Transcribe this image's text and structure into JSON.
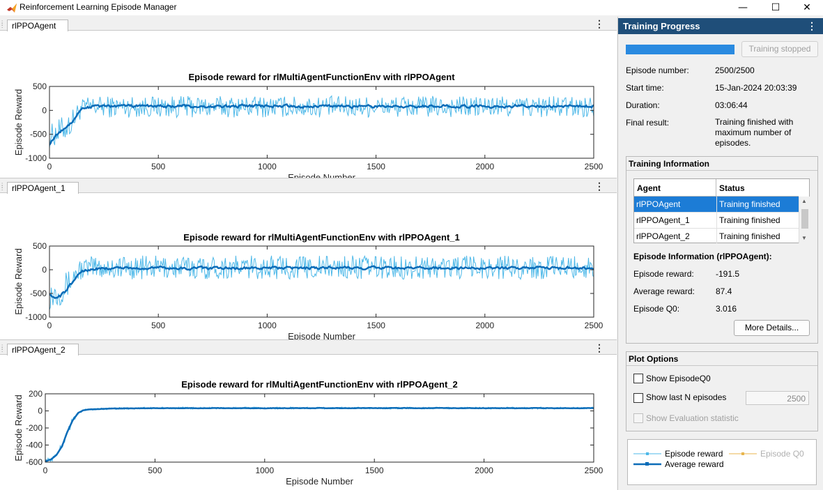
{
  "window": {
    "title": "Reinforcement Learning Episode Manager",
    "controls": {
      "minimize": "—",
      "maximize": "☐",
      "close": "✕"
    }
  },
  "plots": [
    {
      "tab_label": "rlPPOAgent",
      "chart_data": {
        "type": "line",
        "title": "Episode reward for rlMultiAgentFunctionEnv with rlPPOAgent",
        "xlabel": "Episode Number",
        "ylabel": "Episode Reward",
        "xlim": [
          0,
          2500
        ],
        "ylim": [
          -1000,
          500
        ],
        "xticks": [
          0,
          500,
          1000,
          1500,
          2000,
          2500
        ],
        "yticks": [
          500,
          0,
          -500,
          -1000
        ],
        "ytick_labels": [
          "500",
          "0",
          "-500",
          "-1000"
        ],
        "grid": false,
        "series": [
          {
            "name": "Episode reward",
            "color": "#4db8e8",
            "x": [
              0,
              50,
              100,
              125,
              150,
              200,
              250,
              500,
              1000,
              1500,
              2000,
              2500
            ],
            "y_high": [
              -300,
              -150,
              0,
              150,
              250,
              300,
              300,
              300,
              300,
              300,
              300,
              300
            ],
            "y_low": [
              -800,
              -700,
              -550,
              -300,
              -150,
              -150,
              -150,
              -150,
              -150,
              -150,
              -150,
              -150
            ]
          },
          {
            "name": "Average reward",
            "color": "#0b6cb8",
            "x": [
              0,
              25,
              50,
              75,
              100,
              125,
              150,
              200,
              300,
              500,
              750,
              1000,
              1250,
              1500,
              1750,
              2000,
              2250,
              2500
            ],
            "y": [
              -700,
              -550,
              -450,
              -350,
              -250,
              -100,
              50,
              80,
              90,
              85,
              80,
              90,
              85,
              80,
              90,
              85,
              90,
              87
            ]
          }
        ]
      }
    },
    {
      "tab_label": "rlPPOAgent_1",
      "chart_data": {
        "type": "line",
        "title": "Episode reward for rlMultiAgentFunctionEnv with rlPPOAgent_1",
        "xlabel": "Episode Number",
        "ylabel": "Episode Reward",
        "xlim": [
          0,
          2500
        ],
        "ylim": [
          -1000,
          500
        ],
        "xticks": [
          0,
          500,
          1000,
          1500,
          2000,
          2500
        ],
        "yticks": [
          500,
          0,
          -500,
          -1000
        ],
        "ytick_labels": [
          "500",
          "0",
          "-500",
          "-1000"
        ],
        "grid": false,
        "series": [
          {
            "name": "Episode reward",
            "color": "#4db8e8",
            "x": [
              0,
              50,
              100,
              125,
              150,
              200,
              250,
              500,
              1000,
              1500,
              2000,
              2500
            ],
            "y_high": [
              -200,
              -150,
              50,
              200,
              250,
              300,
              300,
              300,
              300,
              300,
              300,
              300
            ],
            "y_low": [
              -850,
              -750,
              -500,
              -300,
              -200,
              -200,
              -200,
              -200,
              -200,
              -200,
              -200,
              -200
            ]
          },
          {
            "name": "Average reward",
            "color": "#0b6cb8",
            "x": [
              0,
              25,
              50,
              75,
              100,
              125,
              150,
              200,
              300,
              500,
              750,
              1000,
              1250,
              1500,
              1750,
              2000,
              2250,
              2500
            ],
            "y": [
              -500,
              -600,
              -550,
              -450,
              -300,
              -150,
              -20,
              20,
              40,
              40,
              30,
              40,
              35,
              40,
              40,
              35,
              40,
              40
            ]
          }
        ]
      }
    },
    {
      "tab_label": "rlPPOAgent_2",
      "chart_data": {
        "type": "line",
        "title": "Episode reward for rlMultiAgentFunctionEnv with rlPPOAgent_2",
        "xlabel": "Episode Number",
        "ylabel": "Episode Reward",
        "xlim": [
          0,
          2500
        ],
        "ylim": [
          -600,
          200
        ],
        "xticks": [
          0,
          500,
          1000,
          1500,
          2000,
          2500
        ],
        "yticks": [
          200,
          0,
          -200,
          -400,
          -600
        ],
        "ytick_labels": [
          "200",
          "0",
          "-200",
          "-400",
          "-600"
        ],
        "grid": false,
        "series": [
          {
            "name": "Episode reward",
            "color": "#4db8e8",
            "x": [
              0,
              25,
              50,
              75,
              100,
              125,
              150,
              175,
              200,
              300,
              500,
              1000,
              1500,
              2000,
              2500
            ],
            "y_high": [
              -560,
              -540,
              -480,
              -380,
              -200,
              -70,
              -10,
              20,
              30,
              40,
              45,
              45,
              45,
              45,
              45
            ],
            "y_low": [
              -620,
              -600,
              -560,
              -460,
              -300,
              -150,
              -40,
              -5,
              5,
              15,
              20,
              20,
              20,
              20,
              20
            ]
          },
          {
            "name": "Average reward",
            "color": "#0b6cb8",
            "x": [
              0,
              25,
              50,
              75,
              100,
              125,
              150,
              175,
              200,
              300,
              500,
              1000,
              1500,
              2000,
              2500
            ],
            "y": [
              -590,
              -570,
              -520,
              -420,
              -250,
              -110,
              -25,
              8,
              18,
              28,
              32,
              32,
              32,
              32,
              32
            ]
          }
        ]
      }
    }
  ],
  "training_progress": {
    "header": "Training Progress",
    "menu_glyph": "⋮",
    "progress": 1.0,
    "stop_button_label": "Training stopped",
    "fields": [
      {
        "label": "Episode number:",
        "value": "2500/2500"
      },
      {
        "label": "Start time:",
        "value": "15-Jan-2024 20:03:39"
      },
      {
        "label": "Duration:",
        "value": "03:06:44"
      },
      {
        "label": "Final result:",
        "value_lines": [
          "Training finished with",
          "maximum number of",
          "episodes."
        ]
      }
    ]
  },
  "training_information": {
    "title": "Training Information",
    "columns": [
      "Agent",
      "Status"
    ],
    "rows": [
      {
        "agent": "rlPPOAgent",
        "status": "Training finished",
        "selected": true
      },
      {
        "agent": "rlPPOAgent_1",
        "status": "Training finished",
        "selected": false
      },
      {
        "agent": "rlPPOAgent_2",
        "status": "Training finished",
        "selected": false
      }
    ],
    "episode_info_title": "Episode Information (rlPPOAgent):",
    "episode_fields": [
      {
        "label": "Episode reward:",
        "value": "-191.5"
      },
      {
        "label": "Average reward:",
        "value": "87.4"
      },
      {
        "label": "Episode Q0:",
        "value": "3.016"
      }
    ],
    "more_details_label": "More Details..."
  },
  "plot_options": {
    "title": "Plot Options",
    "show_q0_label": "Show EpisodeQ0",
    "show_lastn_label": "Show last N episodes",
    "lastn_value": "2500",
    "show_eval_label": "Show Evaluation statistic"
  },
  "legend": {
    "episode_reward": "Episode reward",
    "episode_q0": "Episode Q0",
    "average_reward": "Average reward",
    "colors": {
      "episode_reward": "#4db8e8",
      "episode_q0": "#e8b54d",
      "average_reward": "#0b6cb8"
    }
  }
}
